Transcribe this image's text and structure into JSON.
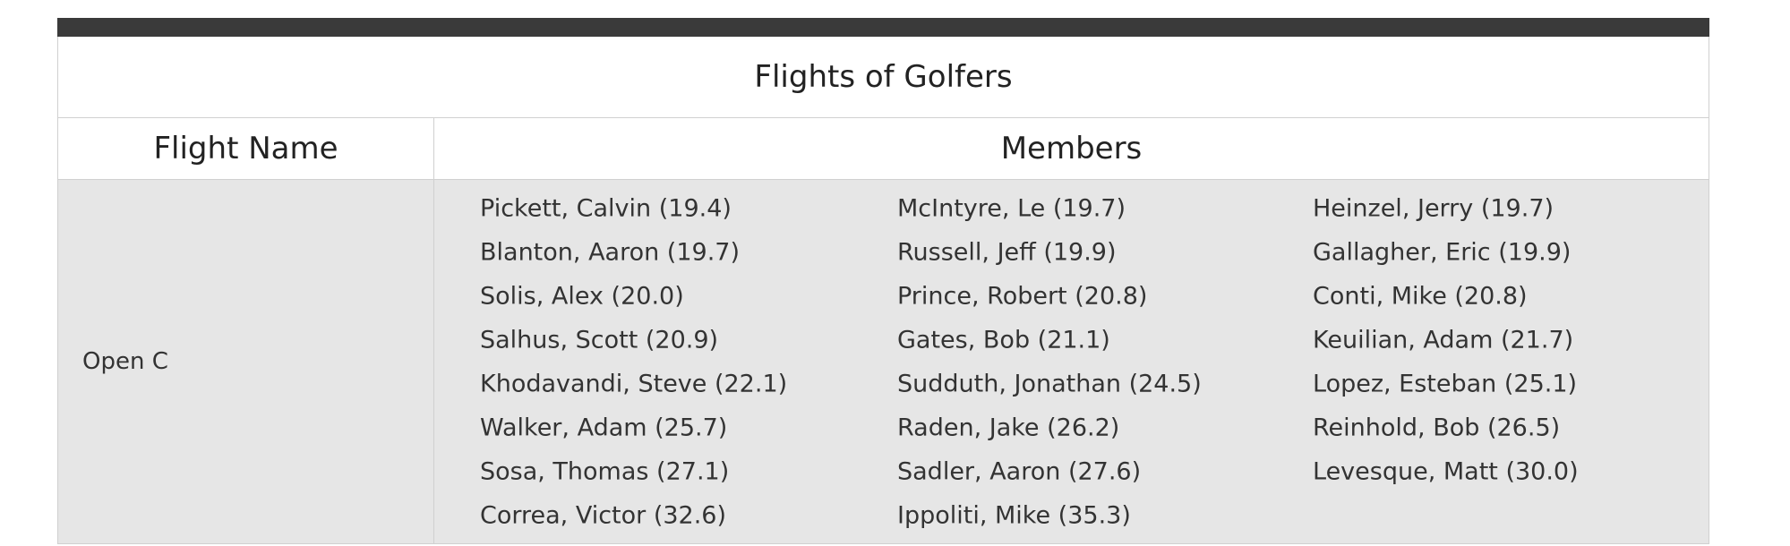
{
  "table": {
    "title": "Flights of Golfers",
    "headers": [
      "Flight Name",
      "Members"
    ],
    "rows": [
      {
        "flight": "Open C",
        "members": [
          "Pickett, Calvin (19.4)",
          "McIntyre, Le (19.7)",
          "Heinzel, Jerry (19.7)",
          "Blanton, Aaron (19.7)",
          "Russell, Jeff (19.9)",
          "Gallagher, Eric (19.9)",
          "Solis, Alex (20.0)",
          "Prince, Robert (20.8)",
          "Conti, Mike (20.8)",
          "Salhus, Scott (20.9)",
          "Gates, Bob (21.1)",
          "Keuilian, Adam (21.7)",
          "Khodavandi, Steve (22.1)",
          "Sudduth, Jonathan (24.5)",
          "Lopez, Esteban (25.1)",
          "Walker, Adam (25.7)",
          "Raden, Jake (26.2)",
          "Reinhold, Bob (26.5)",
          "Sosa, Thomas (27.1)",
          "Sadler, Aaron (27.6)",
          "Levesque, Matt (30.0)",
          "Correa, Victor (32.6)",
          "Ippoliti, Mike (35.3)"
        ]
      }
    ]
  }
}
